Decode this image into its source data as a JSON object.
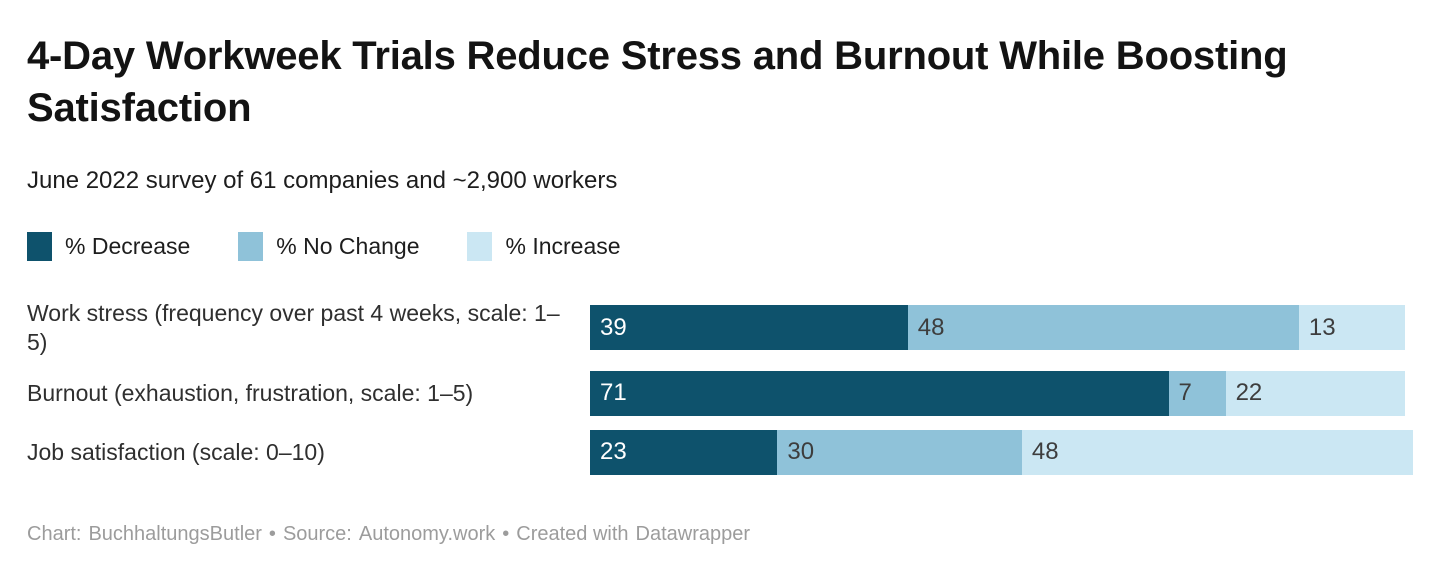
{
  "page": {
    "background": "#ffffff"
  },
  "chart_data": {
    "type": "bar",
    "stacked": true,
    "orientation": "horizontal",
    "title": "4-Day Workweek Trials Reduce Stress and Burnout While Boosting Satisfaction",
    "subtitle": "June 2022 survey of 61 companies and ~2,900 workers",
    "categories": [
      "Work stress (frequency over past 4 weeks, scale: 1–5)",
      "Burnout (exhaustion, frustration, scale: 1–5)",
      "Job satisfaction (scale: 0–10)"
    ],
    "series": [
      {
        "name": "% Decrease",
        "color": "#0e526c",
        "label_color": "#ffffff",
        "values": [
          39,
          71,
          23
        ]
      },
      {
        "name": "% No Change",
        "color": "#8fc2d9",
        "label_color": "#3d3d3d",
        "values": [
          48,
          7,
          30
        ]
      },
      {
        "name": "% Increase",
        "color": "#cbe7f3",
        "label_color": "#3d3d3d",
        "values": [
          13,
          22,
          48
        ]
      }
    ],
    "value_axis_max": 101,
    "grid": false,
    "legend_position": "top",
    "value_labels": "inside-left"
  },
  "footer": {
    "chart_label": "Chart:",
    "chart_credit": "BuchhaltungsButler",
    "separator": "•",
    "source_label": "Source:",
    "source_name": "Autonomy.work",
    "created_label": "Created with",
    "created_tool": "Datawrapper"
  }
}
